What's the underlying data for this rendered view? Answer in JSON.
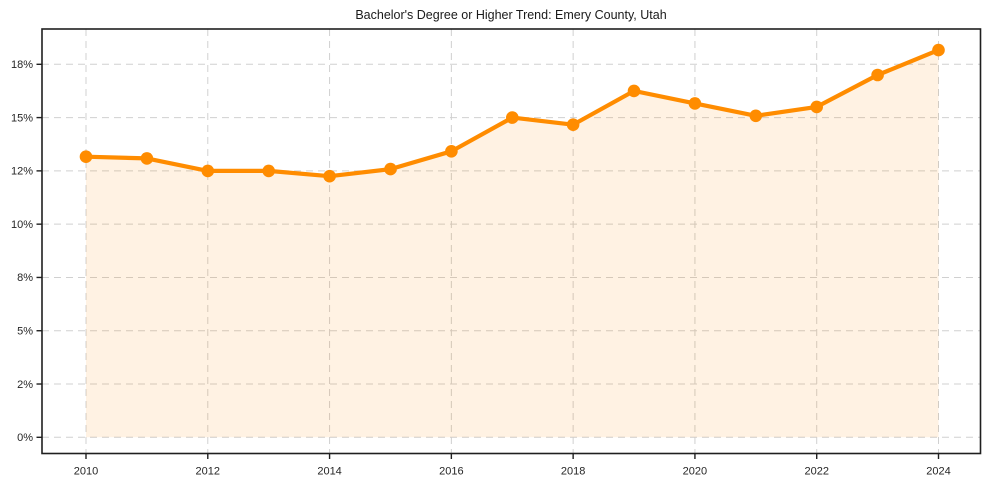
{
  "chart_data": {
    "type": "line",
    "title": "Bachelor's Degree or Higher Trend: Emery County, Utah",
    "x": [
      2010,
      2011,
      2012,
      2013,
      2014,
      2015,
      2016,
      2017,
      2018,
      2019,
      2020,
      2021,
      2022,
      2023,
      2024
    ],
    "values": [
      12.8,
      12.7,
      12.0,
      12.0,
      11.8,
      12.1,
      13.1,
      15.0,
      14.6,
      16.5,
      15.8,
      15.1,
      15.6,
      17.4,
      18.8
    ],
    "unit": "%",
    "xlabel": "",
    "ylabel": "",
    "x_ticks": [
      2010,
      2012,
      2014,
      2016,
      2018,
      2020,
      2022,
      2024
    ],
    "x_tick_labels": [
      "2010",
      "2012",
      "2014",
      "2016",
      "2018",
      "2020",
      "2022",
      "2024"
    ],
    "y_ticks": [
      0,
      2,
      5,
      8,
      10,
      12,
      15,
      18
    ],
    "y_tick_labels": [
      "0%",
      "2%",
      "5%",
      "8%",
      "10%",
      "12%",
      "15%",
      "18%"
    ],
    "grid": true,
    "grid_style": "dashed",
    "legend": false,
    "marker": "circle",
    "area_fill": true,
    "colors": {
      "line": "#ff8c00",
      "marker": "#ff8c00",
      "area": "#ff8c00",
      "area_opacity": 0.11,
      "grid": "#d0d0d0",
      "spine": "#1f1f1f",
      "tick_text": "#262626",
      "background": "#ffffff"
    }
  }
}
